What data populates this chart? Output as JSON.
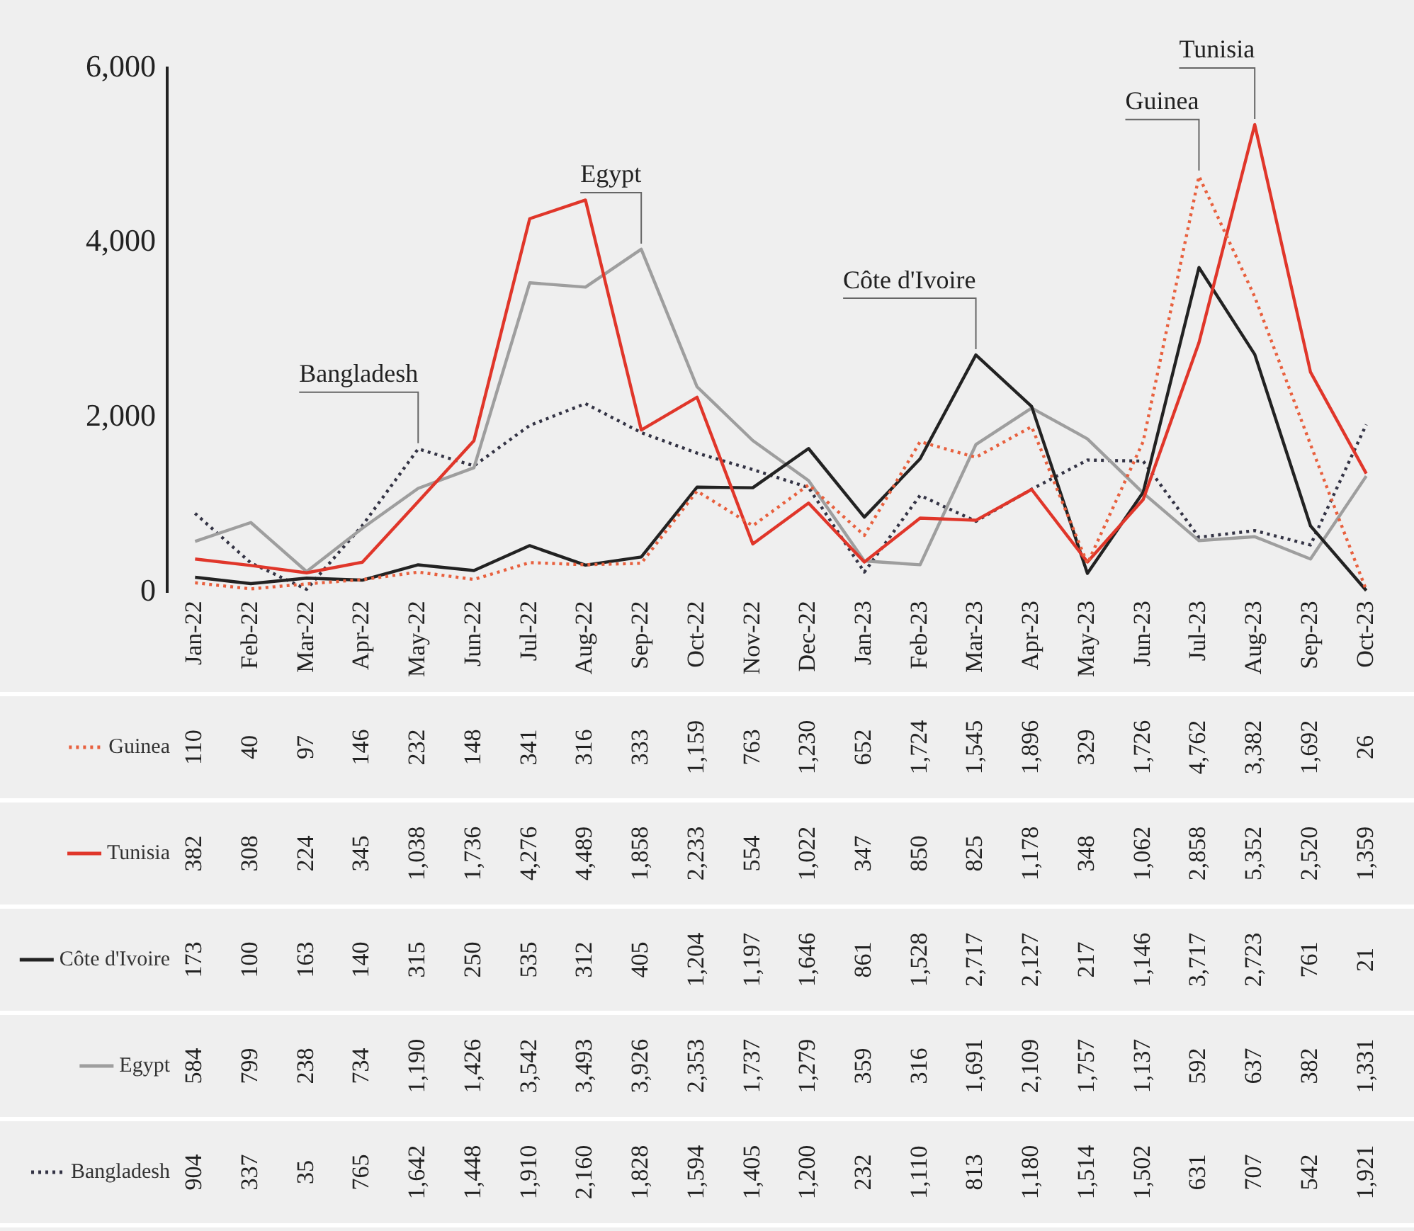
{
  "chart_data": {
    "type": "line",
    "categories": [
      "Jan-22",
      "Feb-22",
      "Mar-22",
      "Apr-22",
      "May-22",
      "Jun-22",
      "Jul-22",
      "Aug-22",
      "Sep-22",
      "Oct-22",
      "Nov-22",
      "Dec-22",
      "Jan-23",
      "Feb-23",
      "Mar-23",
      "Apr-23",
      "May-23",
      "Jun-23",
      "Jul-23",
      "Aug-23",
      "Sep-23",
      "Oct-23"
    ],
    "series": [
      {
        "name": "Guinea",
        "color": "#e8603e",
        "line_style": "dotted",
        "values": [
          110,
          40,
          97,
          146,
          232,
          148,
          341,
          316,
          333,
          1159,
          763,
          1230,
          652,
          1724,
          1545,
          1896,
          329,
          1726,
          4762,
          3382,
          1692,
          26
        ],
        "value_labels": [
          "110",
          "40",
          "97",
          "146",
          "232",
          "148",
          "341",
          "316",
          "333",
          "1,159",
          "763",
          "1,230",
          "652",
          "1,724",
          "1,545",
          "1,896",
          "329",
          "1,726",
          "4,762",
          "3,382",
          "1,692",
          "26"
        ]
      },
      {
        "name": "Tunisia",
        "color": "#e0362a",
        "line_style": "solid",
        "values": [
          382,
          308,
          224,
          345,
          1038,
          1736,
          4276,
          4489,
          1858,
          2233,
          554,
          1022,
          347,
          850,
          825,
          1178,
          348,
          1062,
          2858,
          5352,
          2520,
          1359
        ],
        "value_labels": [
          "382",
          "308",
          "224",
          "345",
          "1,038",
          "1,736",
          "4,276",
          "4,489",
          "1,858",
          "2,233",
          "554",
          "1,022",
          "347",
          "850",
          "825",
          "1,178",
          "348",
          "1,062",
          "2,858",
          "5,352",
          "2,520",
          "1,359"
        ]
      },
      {
        "name": "Côte d'Ivoire",
        "color": "#222222",
        "line_style": "solid",
        "values": [
          173,
          100,
          163,
          140,
          315,
          250,
          535,
          312,
          405,
          1204,
          1197,
          1646,
          861,
          1528,
          2717,
          2127,
          217,
          1146,
          3717,
          2723,
          761,
          21
        ],
        "value_labels": [
          "173",
          "100",
          "163",
          "140",
          "315",
          "250",
          "535",
          "312",
          "405",
          "1,204",
          "1,197",
          "1,646",
          "861",
          "1,528",
          "2,717",
          "2,127",
          "217",
          "1,146",
          "3,717",
          "2,723",
          "761",
          "21"
        ]
      },
      {
        "name": "Egypt",
        "color": "#9e9e9e",
        "line_style": "solid",
        "values": [
          584,
          799,
          238,
          734,
          1190,
          1426,
          3542,
          3493,
          3926,
          2353,
          1737,
          1279,
          359,
          316,
          1691,
          2109,
          1757,
          1137,
          592,
          637,
          382,
          1331
        ],
        "value_labels": [
          "584",
          "799",
          "238",
          "734",
          "1,190",
          "1,426",
          "3,542",
          "3,493",
          "3,926",
          "2,353",
          "1,737",
          "1,279",
          "359",
          "316",
          "1,691",
          "2,109",
          "1,757",
          "1,137",
          "592",
          "637",
          "382",
          "1,331"
        ]
      },
      {
        "name": "Bangladesh",
        "color": "#333344",
        "line_style": "dotted",
        "values": [
          904,
          337,
          35,
          765,
          1642,
          1448,
          1910,
          2160,
          1828,
          1594,
          1405,
          1200,
          232,
          1110,
          813,
          1180,
          1514,
          1502,
          631,
          707,
          542,
          1921
        ],
        "value_labels": [
          "904",
          "337",
          "35",
          "765",
          "1,642",
          "1,448",
          "1,910",
          "2,160",
          "1,828",
          "1,594",
          "1,405",
          "1,200",
          "232",
          "1,110",
          "813",
          "1,180",
          "1,514",
          "1,502",
          "631",
          "707",
          "542",
          "1,921"
        ]
      }
    ],
    "ylim": [
      0,
      6000
    ],
    "yticks": [
      {
        "value": 0,
        "label": "0"
      },
      {
        "value": 2000,
        "label": "2,000"
      },
      {
        "value": 4000,
        "label": "4,000"
      },
      {
        "value": 6000,
        "label": "6,000"
      }
    ],
    "grid": false,
    "legend": "bottom left",
    "marker": "none",
    "annotations": [
      {
        "text": "Bangladesh",
        "x": "May-22",
        "y": 1642
      },
      {
        "text": "Egypt",
        "x": "Sep-22",
        "y": 3926
      },
      {
        "text": "Côte d'Ivoire",
        "x": "Mar-23",
        "y": 2717
      },
      {
        "text": "Guinea",
        "x": "Jul-23",
        "y": 4762
      },
      {
        "text": "Tunisia",
        "x": "Aug-23",
        "y": 5352
      }
    ]
  }
}
